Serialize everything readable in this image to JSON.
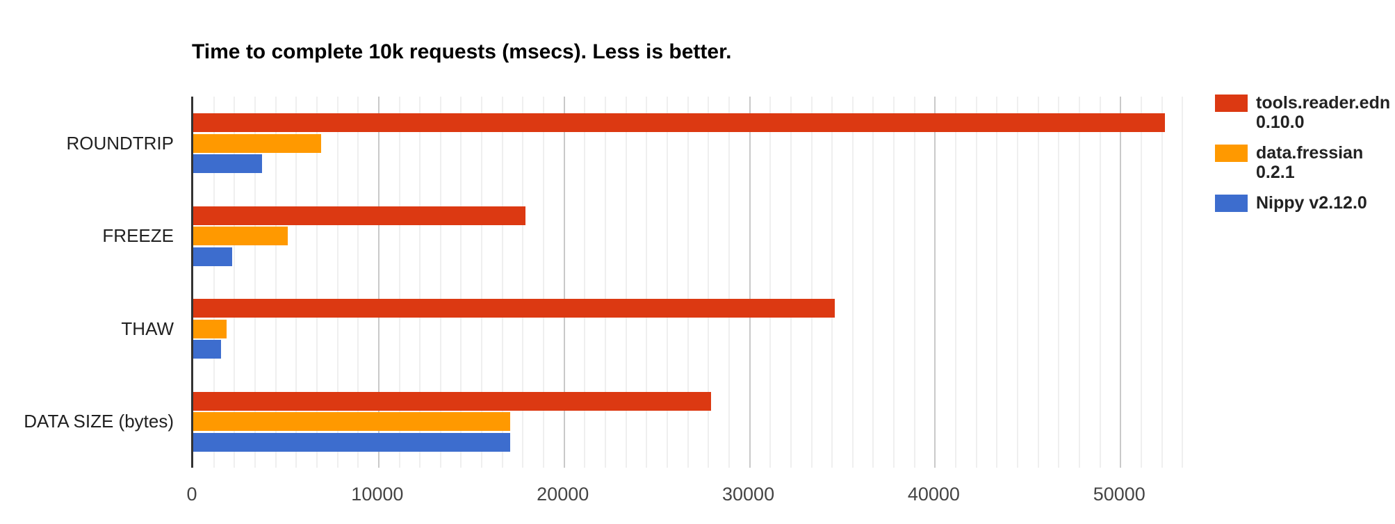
{
  "chart_data": {
    "type": "bar",
    "orientation": "horizontal",
    "title": "Time to complete 10k requests (msecs). Less is better.",
    "categories": [
      "ROUNDTRIP",
      "FREEZE",
      "THAW",
      "DATA SIZE (bytes)"
    ],
    "series": [
      {
        "name": "tools.reader.edn 0.10.0",
        "legend_lines": [
          "tools.reader.edn",
          "0.10.0"
        ],
        "color": "#dc3912",
        "values": [
          52400,
          17900,
          34600,
          27900
        ]
      },
      {
        "name": "data.fressian 0.2.1",
        "legend_lines": [
          "data.fressian",
          "0.2.1"
        ],
        "color": "#ff9900",
        "values": [
          6900,
          5100,
          1800,
          17100
        ]
      },
      {
        "name": "Nippy v2.12.0",
        "legend_lines": [
          "Nippy v2.12.0"
        ],
        "color": "#3d6dce",
        "values": [
          3700,
          2100,
          1500,
          17100
        ]
      }
    ],
    "x_ticks": [
      "0",
      "10000",
      "20000",
      "30000",
      "40000",
      "50000"
    ],
    "x_tick_values": [
      0,
      10000,
      20000,
      30000,
      40000,
      50000
    ],
    "x_max": 53850,
    "minor_gridlines_per_major": 9,
    "legend_position": "right",
    "grid": true,
    "xlabel": "",
    "ylabel": ""
  },
  "colors": {
    "background": "#ffffff",
    "axis_line": "#333333",
    "major_gridline": "#c9c9c9",
    "minor_gridline": "#efefef",
    "tick_label": "#444444",
    "category_label": "#212121",
    "title_text": "#000000",
    "legend_text": "#222222"
  }
}
